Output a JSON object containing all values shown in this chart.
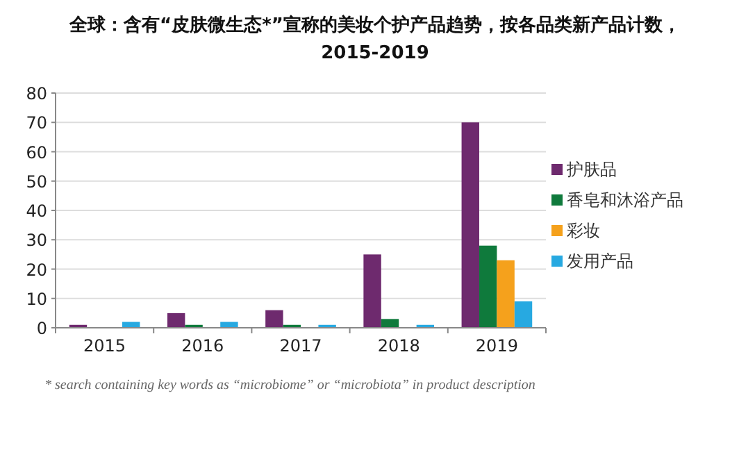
{
  "chart_data": {
    "type": "bar",
    "title": "全球：含有“皮肤微生态*”宣称的美妆个护产品趋势，按各品类新产品计数，2015-2019",
    "categories": [
      "2015",
      "2016",
      "2017",
      "2018",
      "2019"
    ],
    "series": [
      {
        "name": "护肤品",
        "color": "#6e2a6e",
        "values": [
          1,
          5,
          6,
          25,
          70
        ]
      },
      {
        "name": "香皂和沐浴产品",
        "color": "#0f7a3c",
        "values": [
          0,
          1,
          1,
          3,
          28
        ]
      },
      {
        "name": "彩妆",
        "color": "#f5a11c",
        "values": [
          0,
          0,
          0,
          0,
          23
        ]
      },
      {
        "name": "发用产品",
        "color": "#27a9e1",
        "values": [
          2,
          2,
          1,
          1,
          9
        ]
      }
    ],
    "ylim": [
      0,
      80
    ],
    "yticks": [
      0,
      10,
      20,
      30,
      40,
      50,
      60,
      70,
      80
    ],
    "grid": "y",
    "legend": "right",
    "annotations": [
      "* search containing key words as “microbiome” or “microbiota” in product description"
    ]
  }
}
